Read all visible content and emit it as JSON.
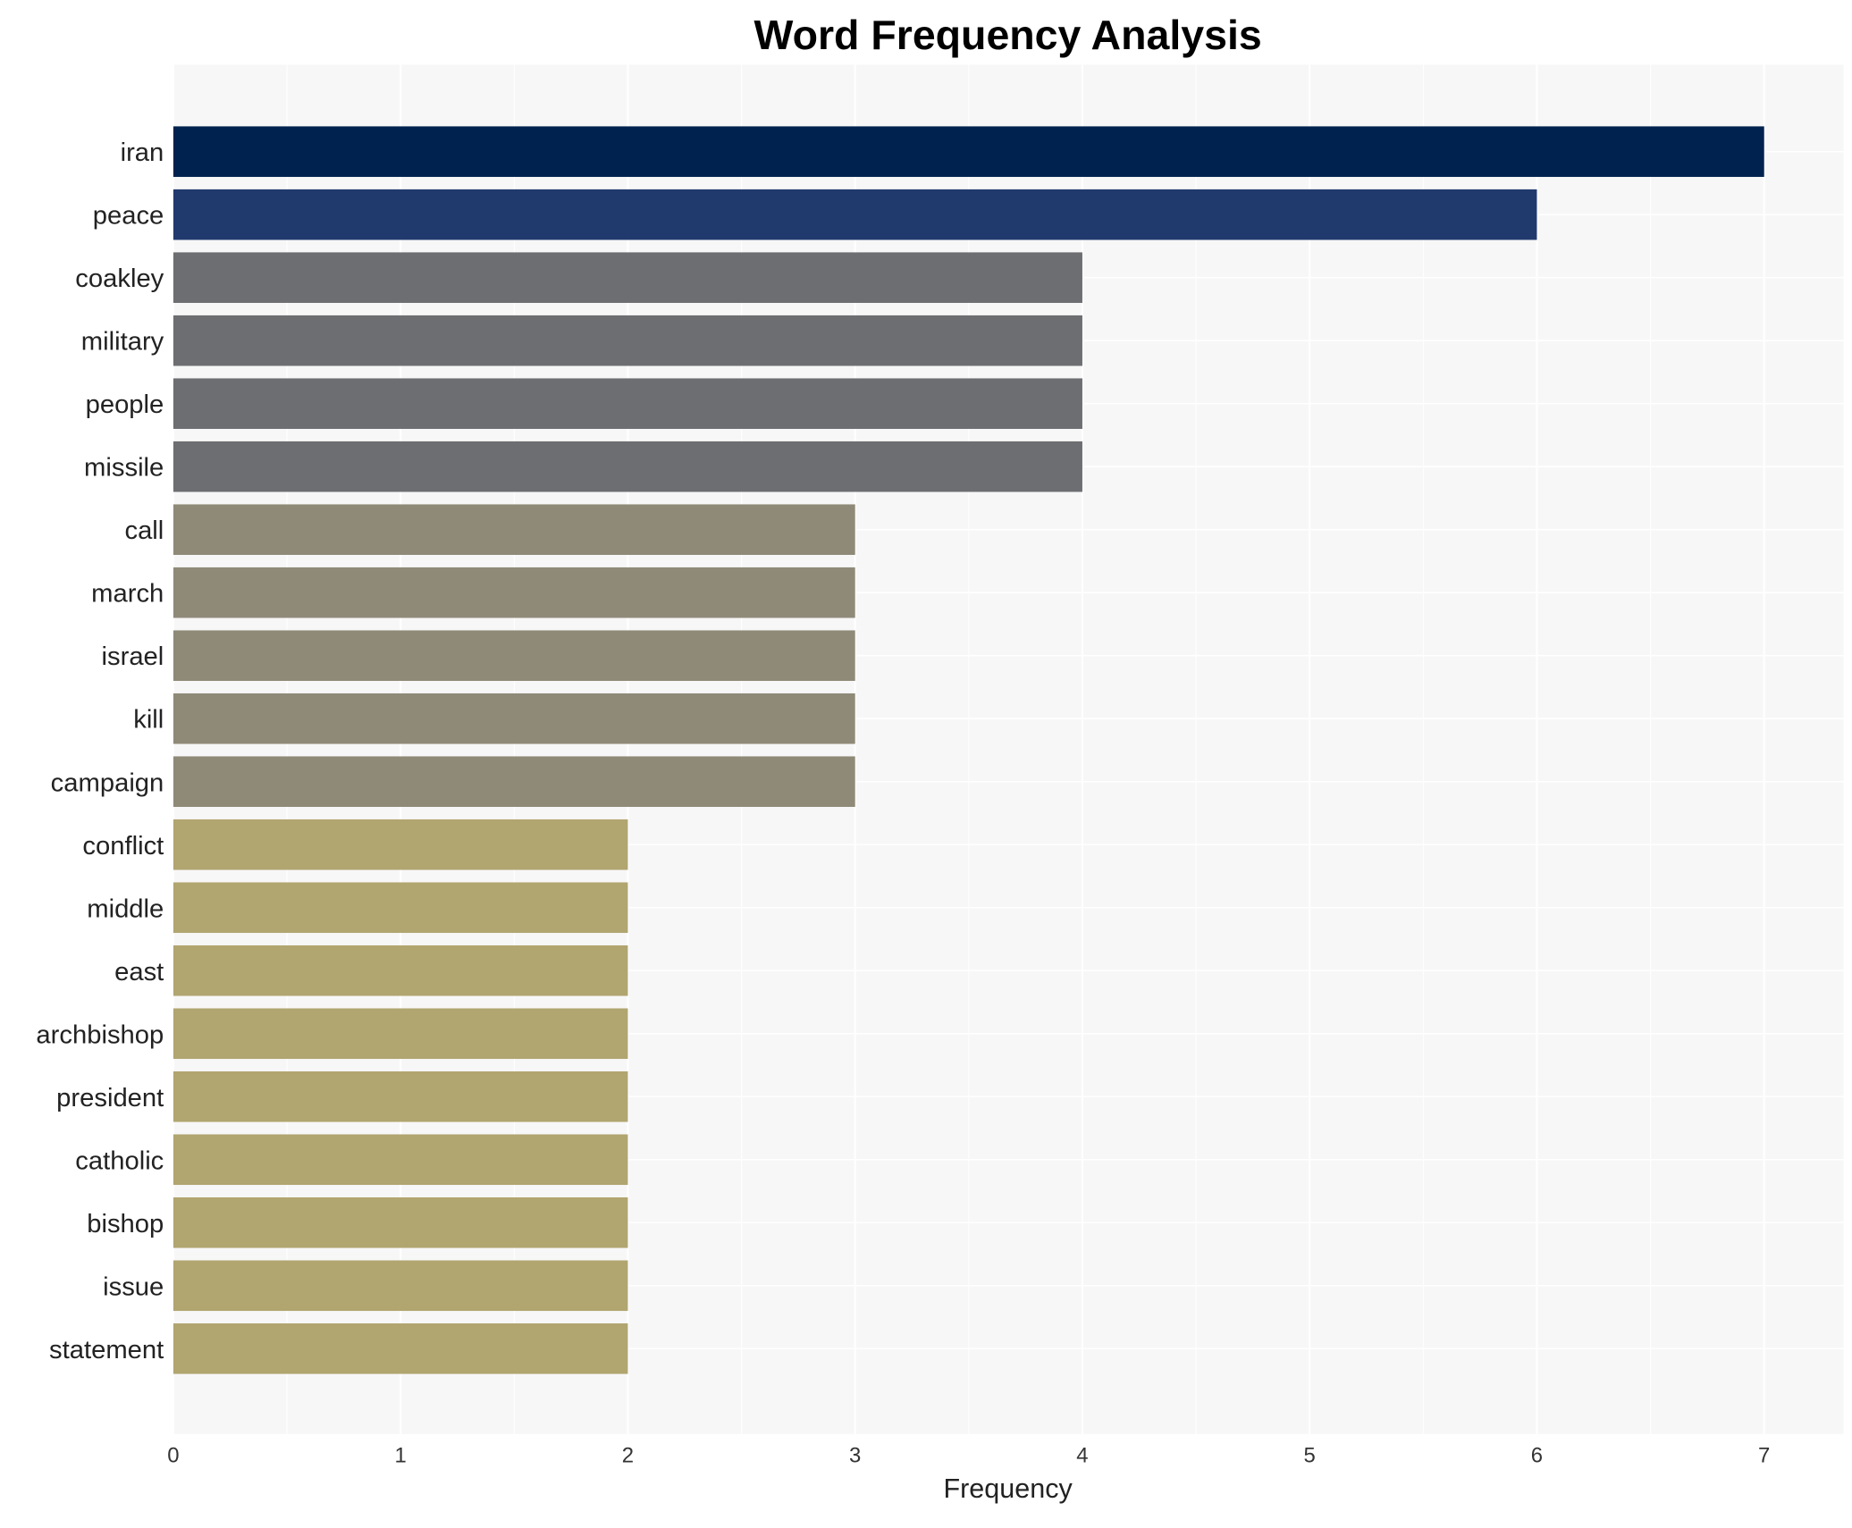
{
  "chart_data": {
    "type": "bar",
    "orientation": "horizontal",
    "title": "Word Frequency Analysis",
    "xlabel": "Frequency",
    "ylabel": "",
    "xlim": [
      0,
      7.35
    ],
    "xticks": [
      "0",
      "1",
      "2",
      "3",
      "4",
      "5",
      "6",
      "7"
    ],
    "grid": true,
    "background": "#f7f7f7",
    "categories": [
      "iran",
      "peace",
      "coakley",
      "military",
      "people",
      "missile",
      "call",
      "march",
      "israel",
      "kill",
      "campaign",
      "conflict",
      "middle",
      "east",
      "archbishop",
      "president",
      "catholic",
      "bishop",
      "issue",
      "statement"
    ],
    "values": [
      7,
      6,
      4,
      4,
      4,
      4,
      3,
      3,
      3,
      3,
      3,
      2,
      2,
      2,
      2,
      2,
      2,
      2,
      2,
      2
    ],
    "colors": [
      "#00224e",
      "#213a6e",
      "#6d6e72",
      "#6d6e72",
      "#6d6e72",
      "#6d6e72",
      "#8f8a78",
      "#8f8a78",
      "#8f8a78",
      "#8f8a78",
      "#8f8a78",
      "#b1a570",
      "#b1a570",
      "#b1a570",
      "#b1a570",
      "#b1a570",
      "#b1a570",
      "#b1a570",
      "#b1a570",
      "#b1a570"
    ]
  }
}
